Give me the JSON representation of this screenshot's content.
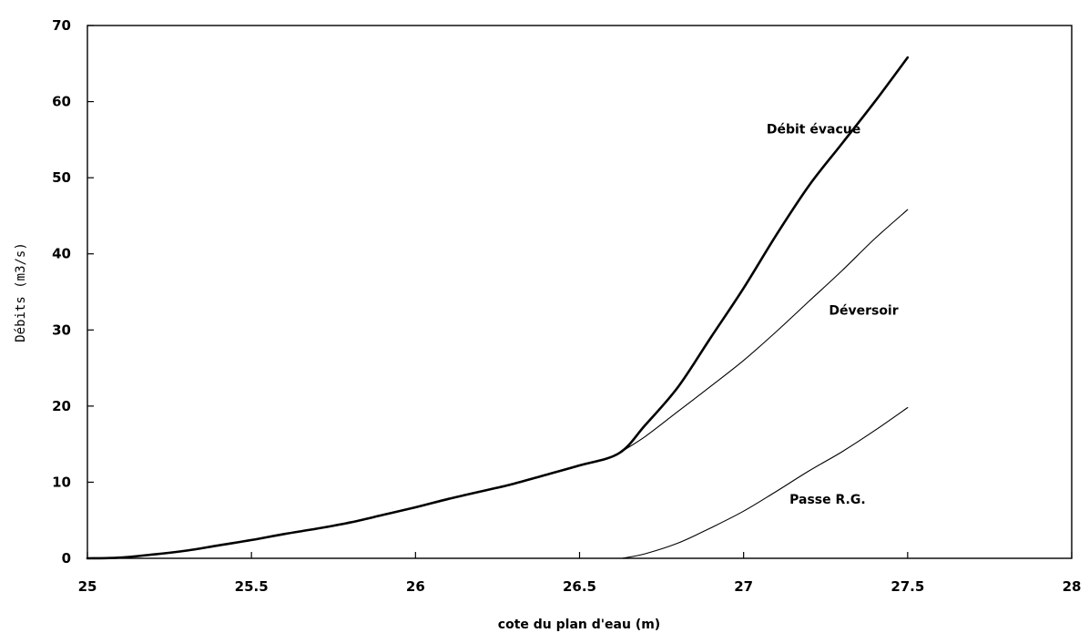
{
  "chart_data": {
    "type": "line",
    "title": "",
    "xlabel": "cote du plan d'eau (m)",
    "ylabel": "Débits (m3/s)",
    "xlim": [
      25,
      28
    ],
    "ylim": [
      0,
      70
    ],
    "xticks": [
      25,
      25.5,
      26,
      26.5,
      27,
      27.5,
      28
    ],
    "xtick_labels": [
      "25",
      "25.5",
      "26",
      "26.5",
      "27",
      "27.5",
      "28"
    ],
    "yticks": [
      0,
      10,
      20,
      30,
      40,
      50,
      60,
      70
    ],
    "ytick_labels": [
      "0",
      "10",
      "20",
      "30",
      "40",
      "50",
      "60",
      "70"
    ],
    "grid": false,
    "legend": "none",
    "series": [
      {
        "name": "Débit évacué",
        "color": "#000000",
        "weight": "bold",
        "label_anchor": [
          27.07,
          55.8
        ],
        "x": [
          25.0,
          25.1,
          25.2,
          25.3,
          25.4,
          25.5,
          25.6,
          25.7,
          25.8,
          25.9,
          26.0,
          26.1,
          26.2,
          26.3,
          26.4,
          26.5,
          26.62,
          26.7,
          26.8,
          26.9,
          27.0,
          27.1,
          27.2,
          27.3,
          27.4,
          27.5
        ],
        "y": [
          0,
          0.1,
          0.5,
          1.0,
          1.7,
          2.4,
          3.2,
          3.9,
          4.7,
          5.7,
          6.7,
          7.8,
          8.8,
          9.8,
          11.0,
          12.2,
          13.8,
          17.5,
          22.5,
          29.0,
          35.5,
          42.5,
          49.0,
          54.5,
          60.0,
          65.8
        ]
      },
      {
        "name": "Déversoir",
        "color": "#000000",
        "weight": "normal",
        "label_anchor": [
          27.26,
          32.0
        ],
        "x": [
          26.62,
          26.7,
          26.8,
          26.9,
          27.0,
          27.1,
          27.2,
          27.3,
          27.4,
          27.5
        ],
        "y": [
          13.8,
          16.0,
          19.3,
          22.6,
          26.0,
          29.8,
          33.8,
          37.8,
          42.0,
          45.8
        ]
      },
      {
        "name": "Passe R.G.",
        "color": "#000000",
        "weight": "normal",
        "label_anchor": [
          27.14,
          7.2
        ],
        "x": [
          26.63,
          26.7,
          26.8,
          26.9,
          27.0,
          27.1,
          27.2,
          27.3,
          27.4,
          27.5
        ],
        "y": [
          0,
          0.6,
          2.0,
          4.0,
          6.2,
          8.8,
          11.5,
          14.0,
          16.8,
          19.8
        ]
      }
    ]
  }
}
